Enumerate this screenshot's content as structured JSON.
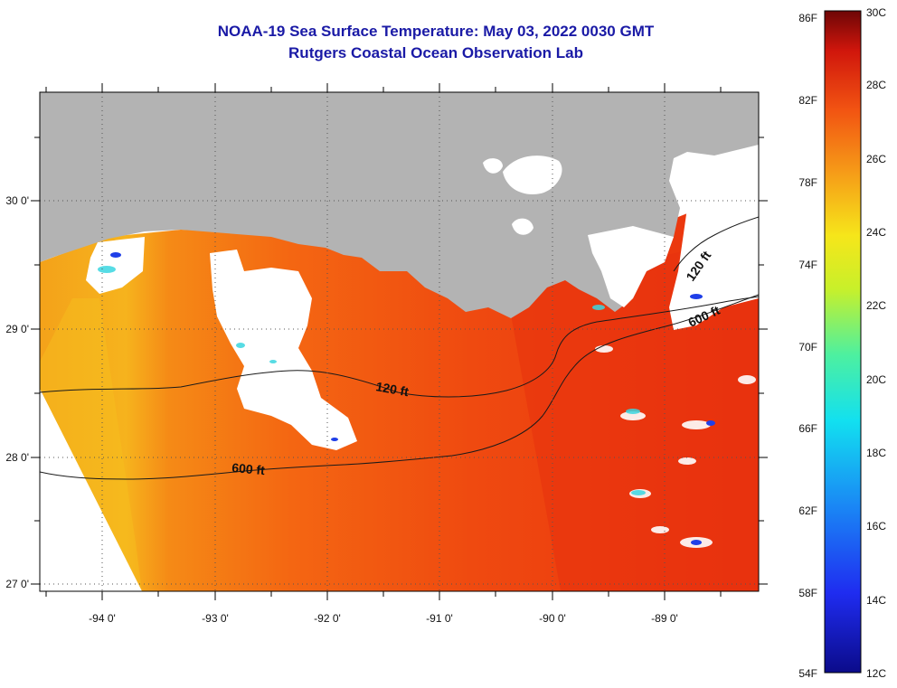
{
  "title": {
    "line1": "NOAA-19 Sea Surface Temperature:  May 03, 2022 0030 GMT",
    "line2": "Rutgers Coastal Ocean Observation Lab"
  },
  "axes": {
    "lat_labels": [
      "30 0'",
      "29 0'",
      "28 0'",
      "27 0'"
    ],
    "lon_labels": [
      "-94 0'",
      "-93 0'",
      "-92 0'",
      "-91 0'",
      "-90 0'",
      "-89 0'"
    ]
  },
  "contours": {
    "c120_west": "120 ft",
    "c600_west": "600 ft",
    "c120_east": "120 ft",
    "c600_east": "600 ft"
  },
  "colorbar": {
    "fahrenheit": [
      "86F",
      "82F",
      "78F",
      "74F",
      "70F",
      "66F",
      "62F",
      "58F",
      "54F"
    ],
    "celsius": [
      "30C",
      "28C",
      "26C",
      "24C",
      "22C",
      "20C",
      "18C",
      "16C",
      "14C",
      "12C"
    ]
  },
  "colors": {
    "title": "#1a1aa6",
    "land": "#b3b3b3",
    "sea_warm": "#f03e10",
    "sea_mid": "#f57a14",
    "cloud": "#ffffff"
  }
}
